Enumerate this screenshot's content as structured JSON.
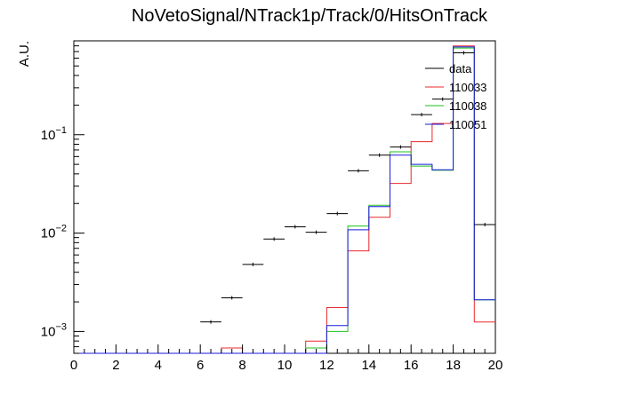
{
  "chart_data": {
    "type": "line",
    "title": "NoVetoSignal/NTrack1p/Track/0/HitsOnTrack",
    "xlabel": "",
    "ylabel": "A.U.",
    "xlim": [
      0,
      20
    ],
    "ylim": [
      0.0006,
      0.9
    ],
    "yscale": "log",
    "xticks": [
      "0",
      "2",
      "4",
      "6",
      "8",
      "10",
      "12",
      "14",
      "16",
      "18",
      "20"
    ],
    "yticks": [
      {
        "value": 0.001,
        "base": "10",
        "exp": "−3"
      },
      {
        "value": 0.01,
        "base": "10",
        "exp": "−2"
      },
      {
        "value": 0.1,
        "base": "10",
        "exp": "−1"
      }
    ],
    "bin_edges": [
      0,
      1,
      2,
      3,
      4,
      5,
      6,
      7,
      8,
      9,
      10,
      11,
      12,
      13,
      14,
      15,
      16,
      17,
      18,
      19,
      20
    ],
    "legend_position": "top-right",
    "series": [
      {
        "name": "data",
        "style": "points",
        "color": "#000000",
        "values": [
          0,
          0,
          0,
          0,
          0,
          0,
          0.00125,
          0.0022,
          0.0048,
          0.0087,
          0.0116,
          0.0102,
          0.0158,
          0.043,
          0.062,
          0.075,
          0.16,
          0.23,
          0.68,
          0.0122
        ]
      },
      {
        "name": "110033",
        "style": "step",
        "color": "#e8282b",
        "values": [
          0,
          0,
          0,
          0,
          0,
          0,
          0.0006,
          0.00068,
          0,
          0,
          0,
          0.0008,
          0.00175,
          0.0066,
          0.0145,
          0.032,
          0.085,
          0.13,
          0.8,
          0.00125
        ]
      },
      {
        "name": "110038",
        "style": "step",
        "color": "#1cc21c",
        "values": [
          0,
          0,
          0,
          0,
          0,
          0,
          0,
          0,
          0,
          0,
          0,
          0.00068,
          0.001,
          0.0118,
          0.0192,
          0.067,
          0.048,
          0.0435,
          0.76,
          0.0021
        ]
      },
      {
        "name": "110051",
        "style": "step",
        "color": "#1a1ae0",
        "values": [
          0,
          0,
          0,
          0,
          0,
          0,
          0,
          0,
          0,
          0,
          0,
          0,
          0.00115,
          0.0108,
          0.0186,
          0.062,
          0.05,
          0.044,
          0.78,
          0.0021
        ]
      }
    ]
  }
}
